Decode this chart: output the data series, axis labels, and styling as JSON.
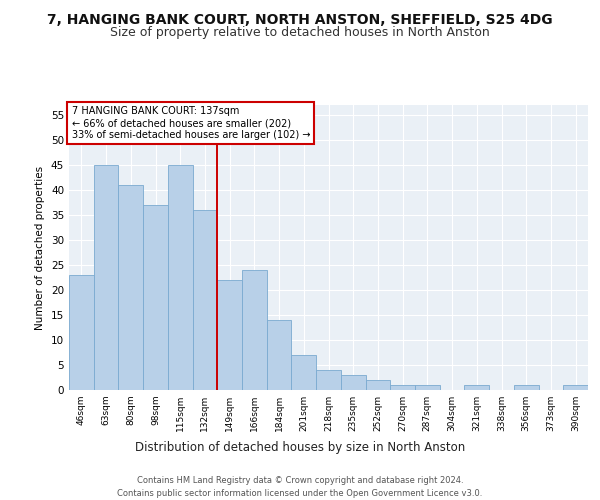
{
  "title": "7, HANGING BANK COURT, NORTH ANSTON, SHEFFIELD, S25 4DG",
  "subtitle": "Size of property relative to detached houses in North Anston",
  "xlabel": "Distribution of detached houses by size in North Anston",
  "ylabel": "Number of detached properties",
  "categories": [
    "46sqm",
    "63sqm",
    "80sqm",
    "98sqm",
    "115sqm",
    "132sqm",
    "149sqm",
    "166sqm",
    "184sqm",
    "201sqm",
    "218sqm",
    "235sqm",
    "252sqm",
    "270sqm",
    "287sqm",
    "304sqm",
    "321sqm",
    "338sqm",
    "356sqm",
    "373sqm",
    "390sqm"
  ],
  "values": [
    23,
    45,
    41,
    37,
    45,
    36,
    22,
    24,
    14,
    7,
    4,
    3,
    2,
    1,
    1,
    0,
    1,
    0,
    1,
    0,
    1
  ],
  "bar_color": "#b8d0e8",
  "bar_edge_color": "#7aaad0",
  "vline_x": 5.5,
  "vline_color": "#cc0000",
  "annotation_text": "7 HANGING BANK COURT: 137sqm\n← 66% of detached houses are smaller (202)\n33% of semi-detached houses are larger (102) →",
  "annotation_box_color": "#cc0000",
  "ylim": [
    0,
    57
  ],
  "yticks": [
    0,
    5,
    10,
    15,
    20,
    25,
    30,
    35,
    40,
    45,
    50,
    55
  ],
  "footer": "Contains HM Land Registry data © Crown copyright and database right 2024.\nContains public sector information licensed under the Open Government Licence v3.0.",
  "bg_color": "#eaf0f6",
  "title_fontsize": 10,
  "subtitle_fontsize": 9
}
